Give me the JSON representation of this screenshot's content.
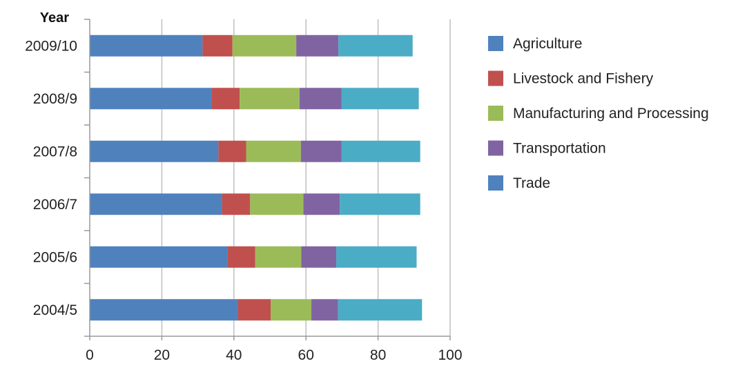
{
  "chart_data": {
    "type": "bar",
    "orientation": "horizontal",
    "stacked": true,
    "ylabel": "Year",
    "xlabel": "",
    "title": "",
    "xlim": [
      0,
      100
    ],
    "xticks": [
      0,
      20,
      40,
      60,
      80,
      100
    ],
    "grid": "vertical",
    "legend_position": "right",
    "categories": [
      "2009/10",
      "2008/9",
      "2007/8",
      "2006/7",
      "2005/6",
      "2004/5"
    ],
    "series": [
      {
        "name": "Agriculture",
        "color": "#4f81bd",
        "values": [
          31.3,
          33.8,
          35.7,
          36.7,
          38.2,
          41.1
        ]
      },
      {
        "name": "Livestock and Fishery",
        "color": "#c0504d",
        "values": [
          8.3,
          7.8,
          7.7,
          7.8,
          7.7,
          9.1
        ]
      },
      {
        "name": "Manufacturing and Processing",
        "color": "#9bbb59",
        "values": [
          17.7,
          16.6,
          15.2,
          14.8,
          12.8,
          11.3
        ]
      },
      {
        "name": "Transportation",
        "color": "#8064a2",
        "values": [
          11.7,
          11.7,
          11.3,
          10.1,
          9.7,
          7.4
        ]
      },
      {
        "name": "Trade",
        "color": "#4bacc6",
        "values": [
          20.6,
          21.4,
          21.8,
          22.3,
          22.3,
          23.3
        ]
      }
    ],
    "legend_swatch_colors": [
      "#4f81bd",
      "#c0504d",
      "#9bbb59",
      "#8064a2",
      "#4f81bd"
    ]
  }
}
